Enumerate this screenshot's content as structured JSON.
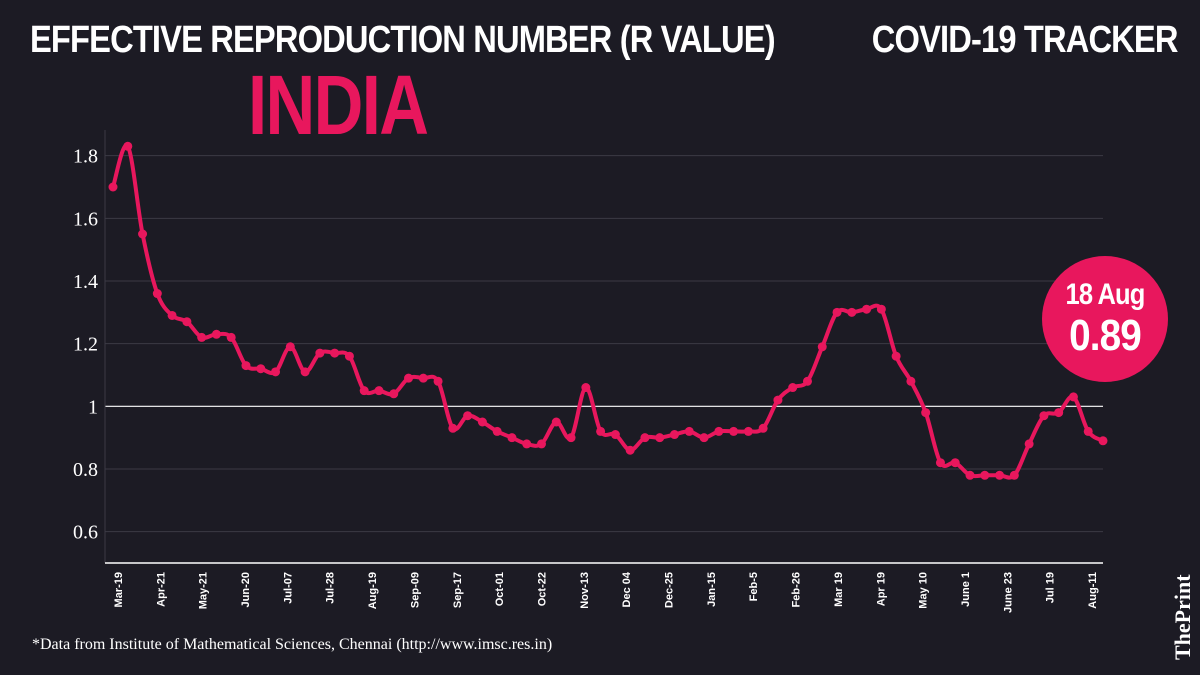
{
  "header": {
    "title": "EFFECTIVE REPRODUCTION NUMBER (R VALUE)",
    "country": "INDIA",
    "tracker": "COVID-19 TRACKER"
  },
  "callout": {
    "date": "18 Aug",
    "value": "0.89"
  },
  "footer": {
    "source": "*Data from Institute of Mathematical Sciences, Chennai (http://www.imsc.res.in)",
    "brand": "ThePrint"
  },
  "colors": {
    "background": "#1c1b24",
    "accent": "#e8175d",
    "text": "#ffffff",
    "grid": "#3b3a45",
    "reference_line": "#ffffff"
  },
  "chart_data": {
    "type": "line",
    "title": "EFFECTIVE REPRODUCTION NUMBER (R VALUE)",
    "xlabel": "",
    "ylabel": "",
    "ylim": [
      0.5,
      1.85
    ],
    "yticks": [
      0.6,
      0.8,
      1,
      1.2,
      1.4,
      1.6,
      1.8
    ],
    "reference_line": 1,
    "grid": true,
    "xtick_labels": [
      "Mar-19",
      "Apr-21",
      "May-21",
      "Jun-20",
      "Jul-07",
      "Jul-28",
      "Aug-19",
      "Sep-09",
      "Sep-17",
      "Oct-01",
      "Oct-22",
      "Nov-13",
      "Dec 04",
      "Dec-25",
      "Jan-15",
      "Feb-5",
      "Feb-26",
      "Mar 19",
      "Apr 19",
      "May 10",
      "June 1",
      "June 23",
      "Jul 19",
      "Aug-11"
    ],
    "series": [
      {
        "values": [
          1.7,
          1.83,
          1.55,
          1.36,
          1.29,
          1.27,
          1.22,
          1.23,
          1.22,
          1.13,
          1.12,
          1.11,
          1.19,
          1.11,
          1.17,
          1.17,
          1.16,
          1.05,
          1.05,
          1.04,
          1.09,
          1.09,
          1.08,
          0.93,
          0.97,
          0.95,
          0.92,
          0.9,
          0.88,
          0.88,
          0.95,
          0.9,
          1.06,
          0.92,
          0.91,
          0.86,
          0.9,
          0.9,
          0.91,
          0.92,
          0.9,
          0.92,
          0.92,
          0.92,
          0.93,
          1.02,
          1.06,
          1.08,
          1.19,
          1.3,
          1.3,
          1.31,
          1.31,
          1.16,
          1.08,
          0.98,
          0.82,
          0.82,
          0.78,
          0.78,
          0.78,
          0.78,
          0.88,
          0.97,
          0.98,
          1.03,
          0.92,
          0.89
        ]
      }
    ]
  }
}
